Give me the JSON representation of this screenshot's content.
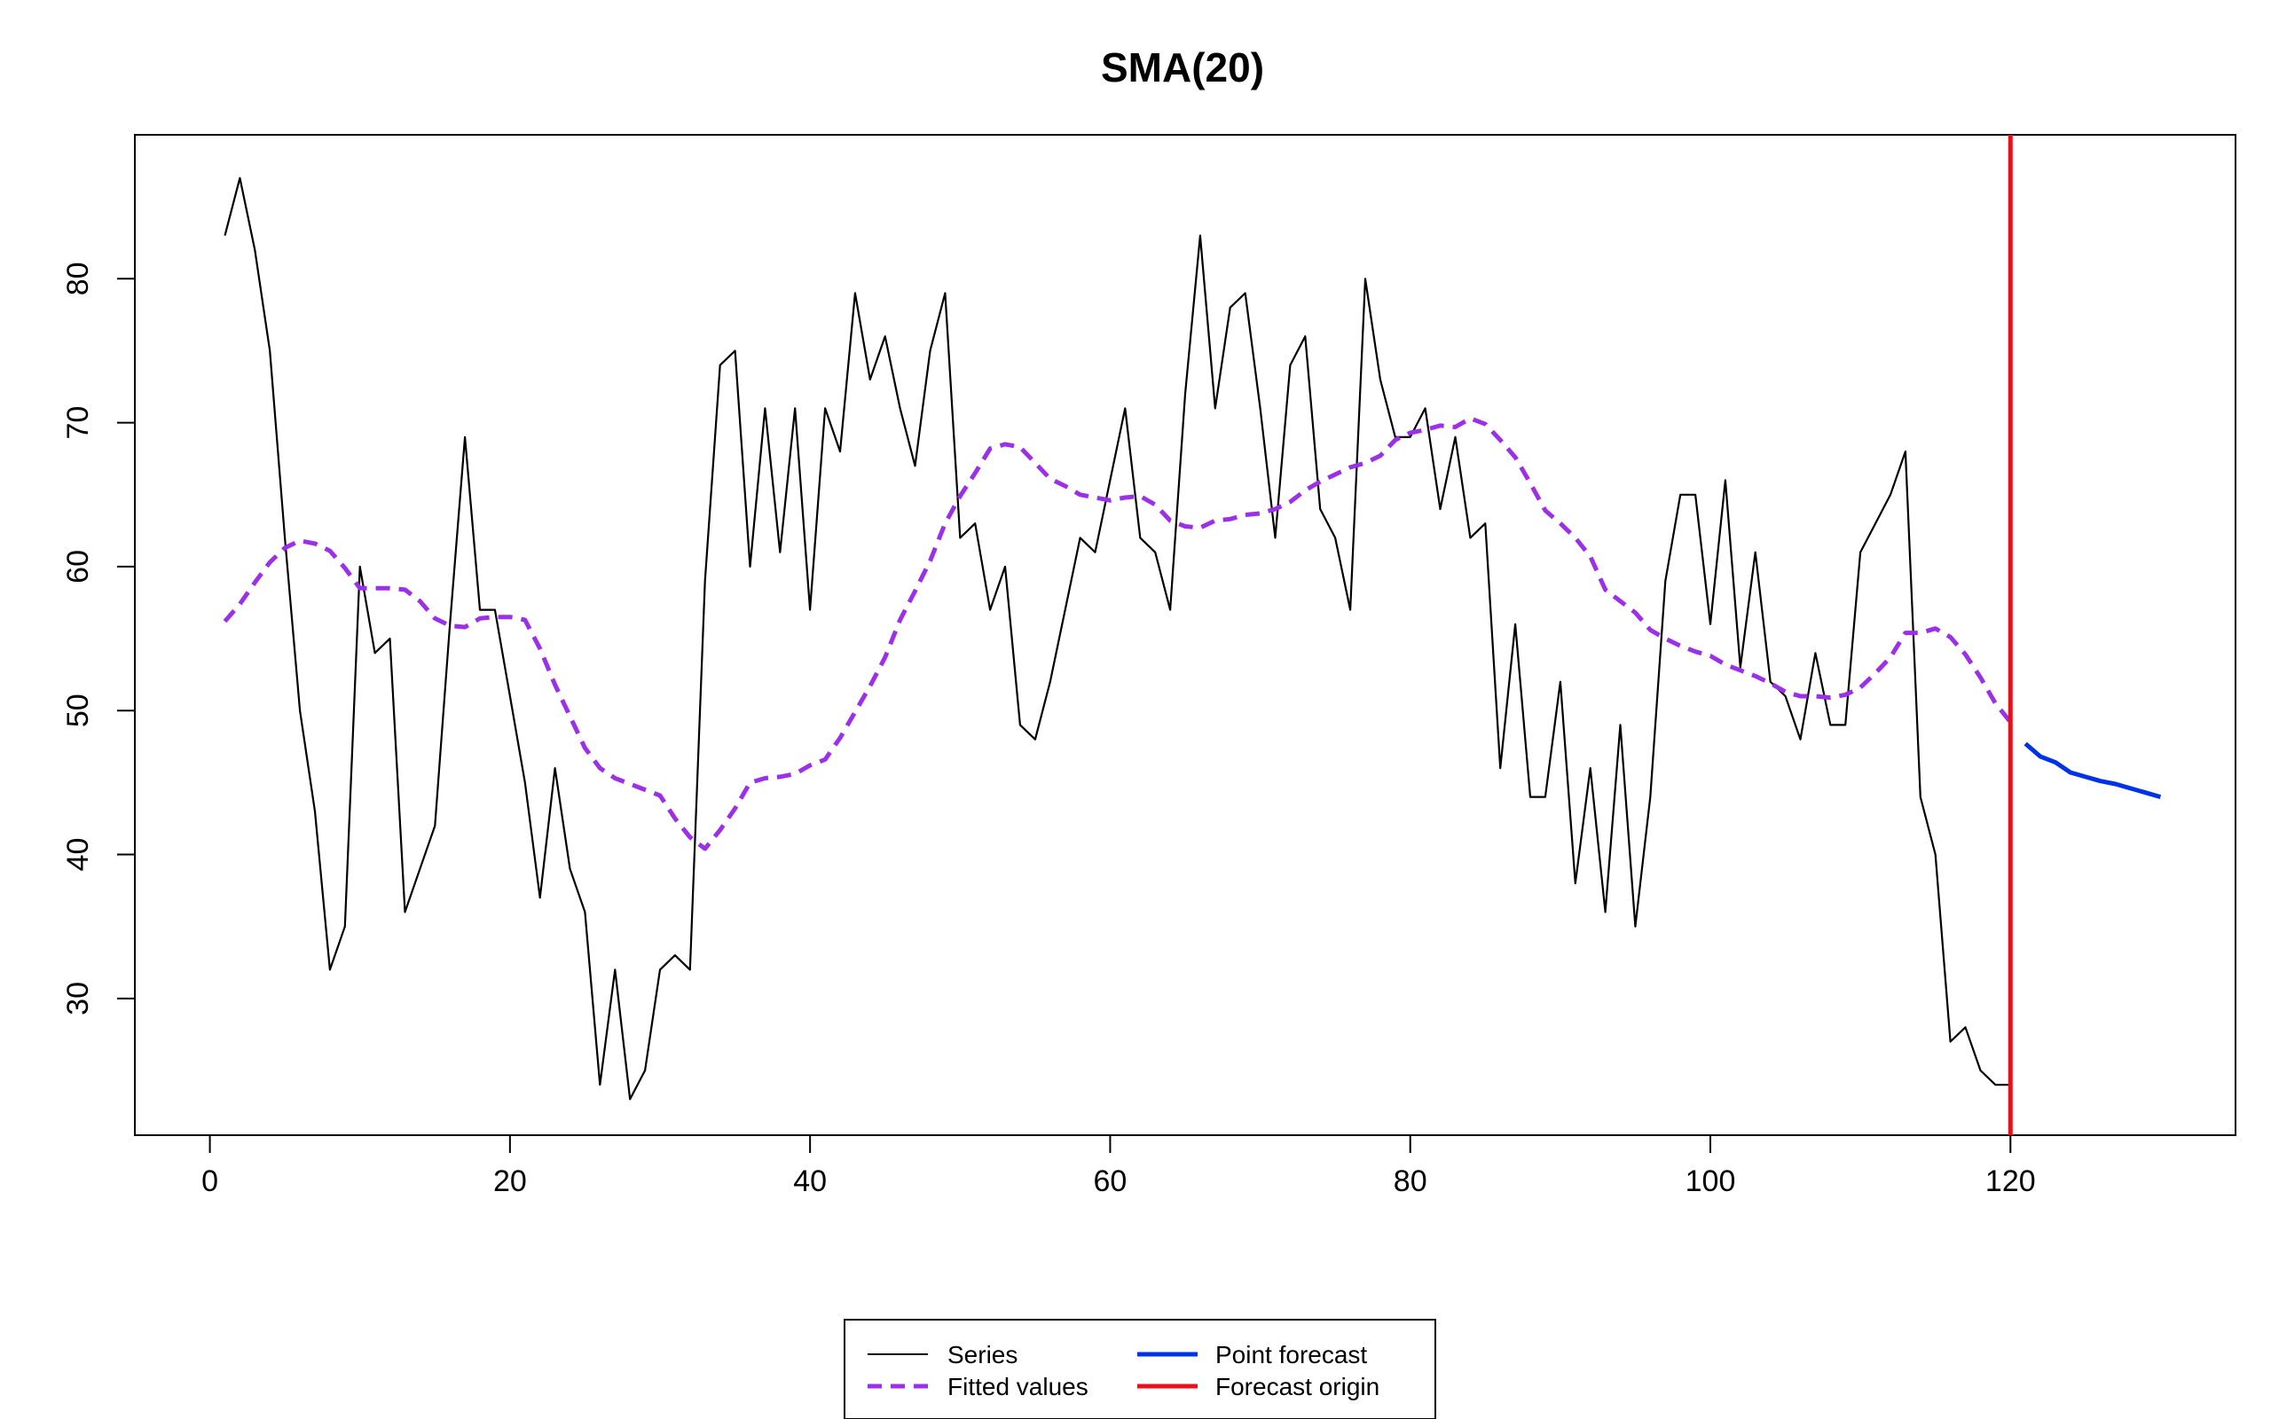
{
  "chart_data": {
    "type": "line",
    "title": "SMA(20)",
    "xlabel": "",
    "ylabel": "",
    "xlim": [
      -5,
      135
    ],
    "ylim": [
      20.5,
      90
    ],
    "x_ticks": [
      0,
      20,
      40,
      60,
      80,
      100,
      120
    ],
    "y_ticks": [
      30,
      40,
      50,
      60,
      70,
      80
    ],
    "grid": false,
    "legend_position": "bottom",
    "forecast_origin": 120,
    "series": [
      {
        "name": "Series",
        "color": "#000000",
        "style": "solid",
        "x_start": 1,
        "values": [
          83,
          87,
          82,
          75,
          62,
          50,
          43,
          32,
          35,
          60,
          54,
          55,
          36,
          39,
          42,
          56,
          69,
          57,
          57,
          51,
          45,
          37,
          46,
          39,
          36,
          24,
          32,
          23,
          25,
          32,
          33,
          32,
          59,
          74,
          75,
          60,
          71,
          61,
          71,
          57,
          71,
          68,
          79,
          73,
          76,
          71,
          67,
          75,
          79,
          62,
          63,
          57,
          60,
          49,
          48,
          52,
          57,
          62,
          61,
          66,
          71,
          62,
          61,
          57,
          72,
          83,
          71,
          78,
          79,
          71,
          62,
          74,
          76,
          64,
          62,
          57,
          80,
          73,
          69,
          69,
          71,
          64,
          69,
          62,
          63,
          46,
          56,
          44,
          44,
          52,
          38,
          46,
          36,
          49,
          35,
          44,
          59,
          65,
          65,
          56,
          66,
          53,
          61,
          52,
          51,
          48,
          54,
          49,
          49,
          61,
          63,
          65,
          68,
          44,
          40,
          27,
          28,
          25,
          24,
          24
        ]
      },
      {
        "name": "Fitted values",
        "color": "#9b30e8",
        "style": "dashed",
        "x_start": 1,
        "values": [
          56.2,
          57.4,
          58.9,
          60.3,
          61.3,
          61.8,
          61.6,
          61.1,
          59.9,
          58.5,
          58.5,
          58.5,
          58.4,
          57.6,
          56.4,
          55.9,
          55.8,
          56.4,
          56.5,
          56.5,
          56.3,
          54.3,
          51.8,
          49.6,
          47.4,
          46.0,
          45.3,
          44.9,
          44.5,
          44.1,
          42.5,
          41.2,
          40.4,
          41.7,
          43.2,
          45.0,
          45.3,
          45.4,
          45.6,
          46.2,
          46.6,
          48.1,
          49.9,
          51.7,
          53.7,
          56.3,
          58.3,
          60.4,
          63.0,
          64.9,
          66.5,
          68.2,
          68.5,
          68.3,
          67.2,
          66.1,
          65.6,
          65.0,
          64.8,
          64.6,
          64.8,
          64.9,
          64.3,
          63.2,
          62.8,
          62.7,
          63.2,
          63.3,
          63.6,
          63.7,
          64.0,
          64.5,
          65.3,
          65.9,
          66.4,
          66.9,
          67.2,
          67.7,
          68.8,
          69.3,
          69.5,
          69.8,
          69.7,
          70.3,
          69.9,
          68.8,
          67.6,
          65.8,
          63.9,
          63.0,
          62.0,
          60.7,
          58.4,
          57.6,
          56.8,
          55.6,
          55.0,
          54.5,
          54.1,
          53.8,
          53.2,
          52.8,
          52.4,
          51.9,
          51.3,
          51.0,
          51.0,
          50.9,
          51.1,
          51.6,
          52.6,
          53.7,
          55.4,
          55.4,
          55.7,
          55.1,
          53.9,
          52.3,
          50.5,
          49.2
        ]
      },
      {
        "name": "Point forecast",
        "color": "#0033e8",
        "style": "solid",
        "x_start": 121,
        "values": [
          47.7,
          46.8,
          46.4,
          45.7,
          45.4,
          45.1,
          44.9,
          44.6,
          44.3,
          44.0
        ]
      }
    ],
    "legend": {
      "col1": [
        "Series",
        "Fitted values"
      ],
      "col2": [
        "Point forecast",
        "Forecast origin"
      ]
    },
    "origin_color": "#e8101a"
  }
}
